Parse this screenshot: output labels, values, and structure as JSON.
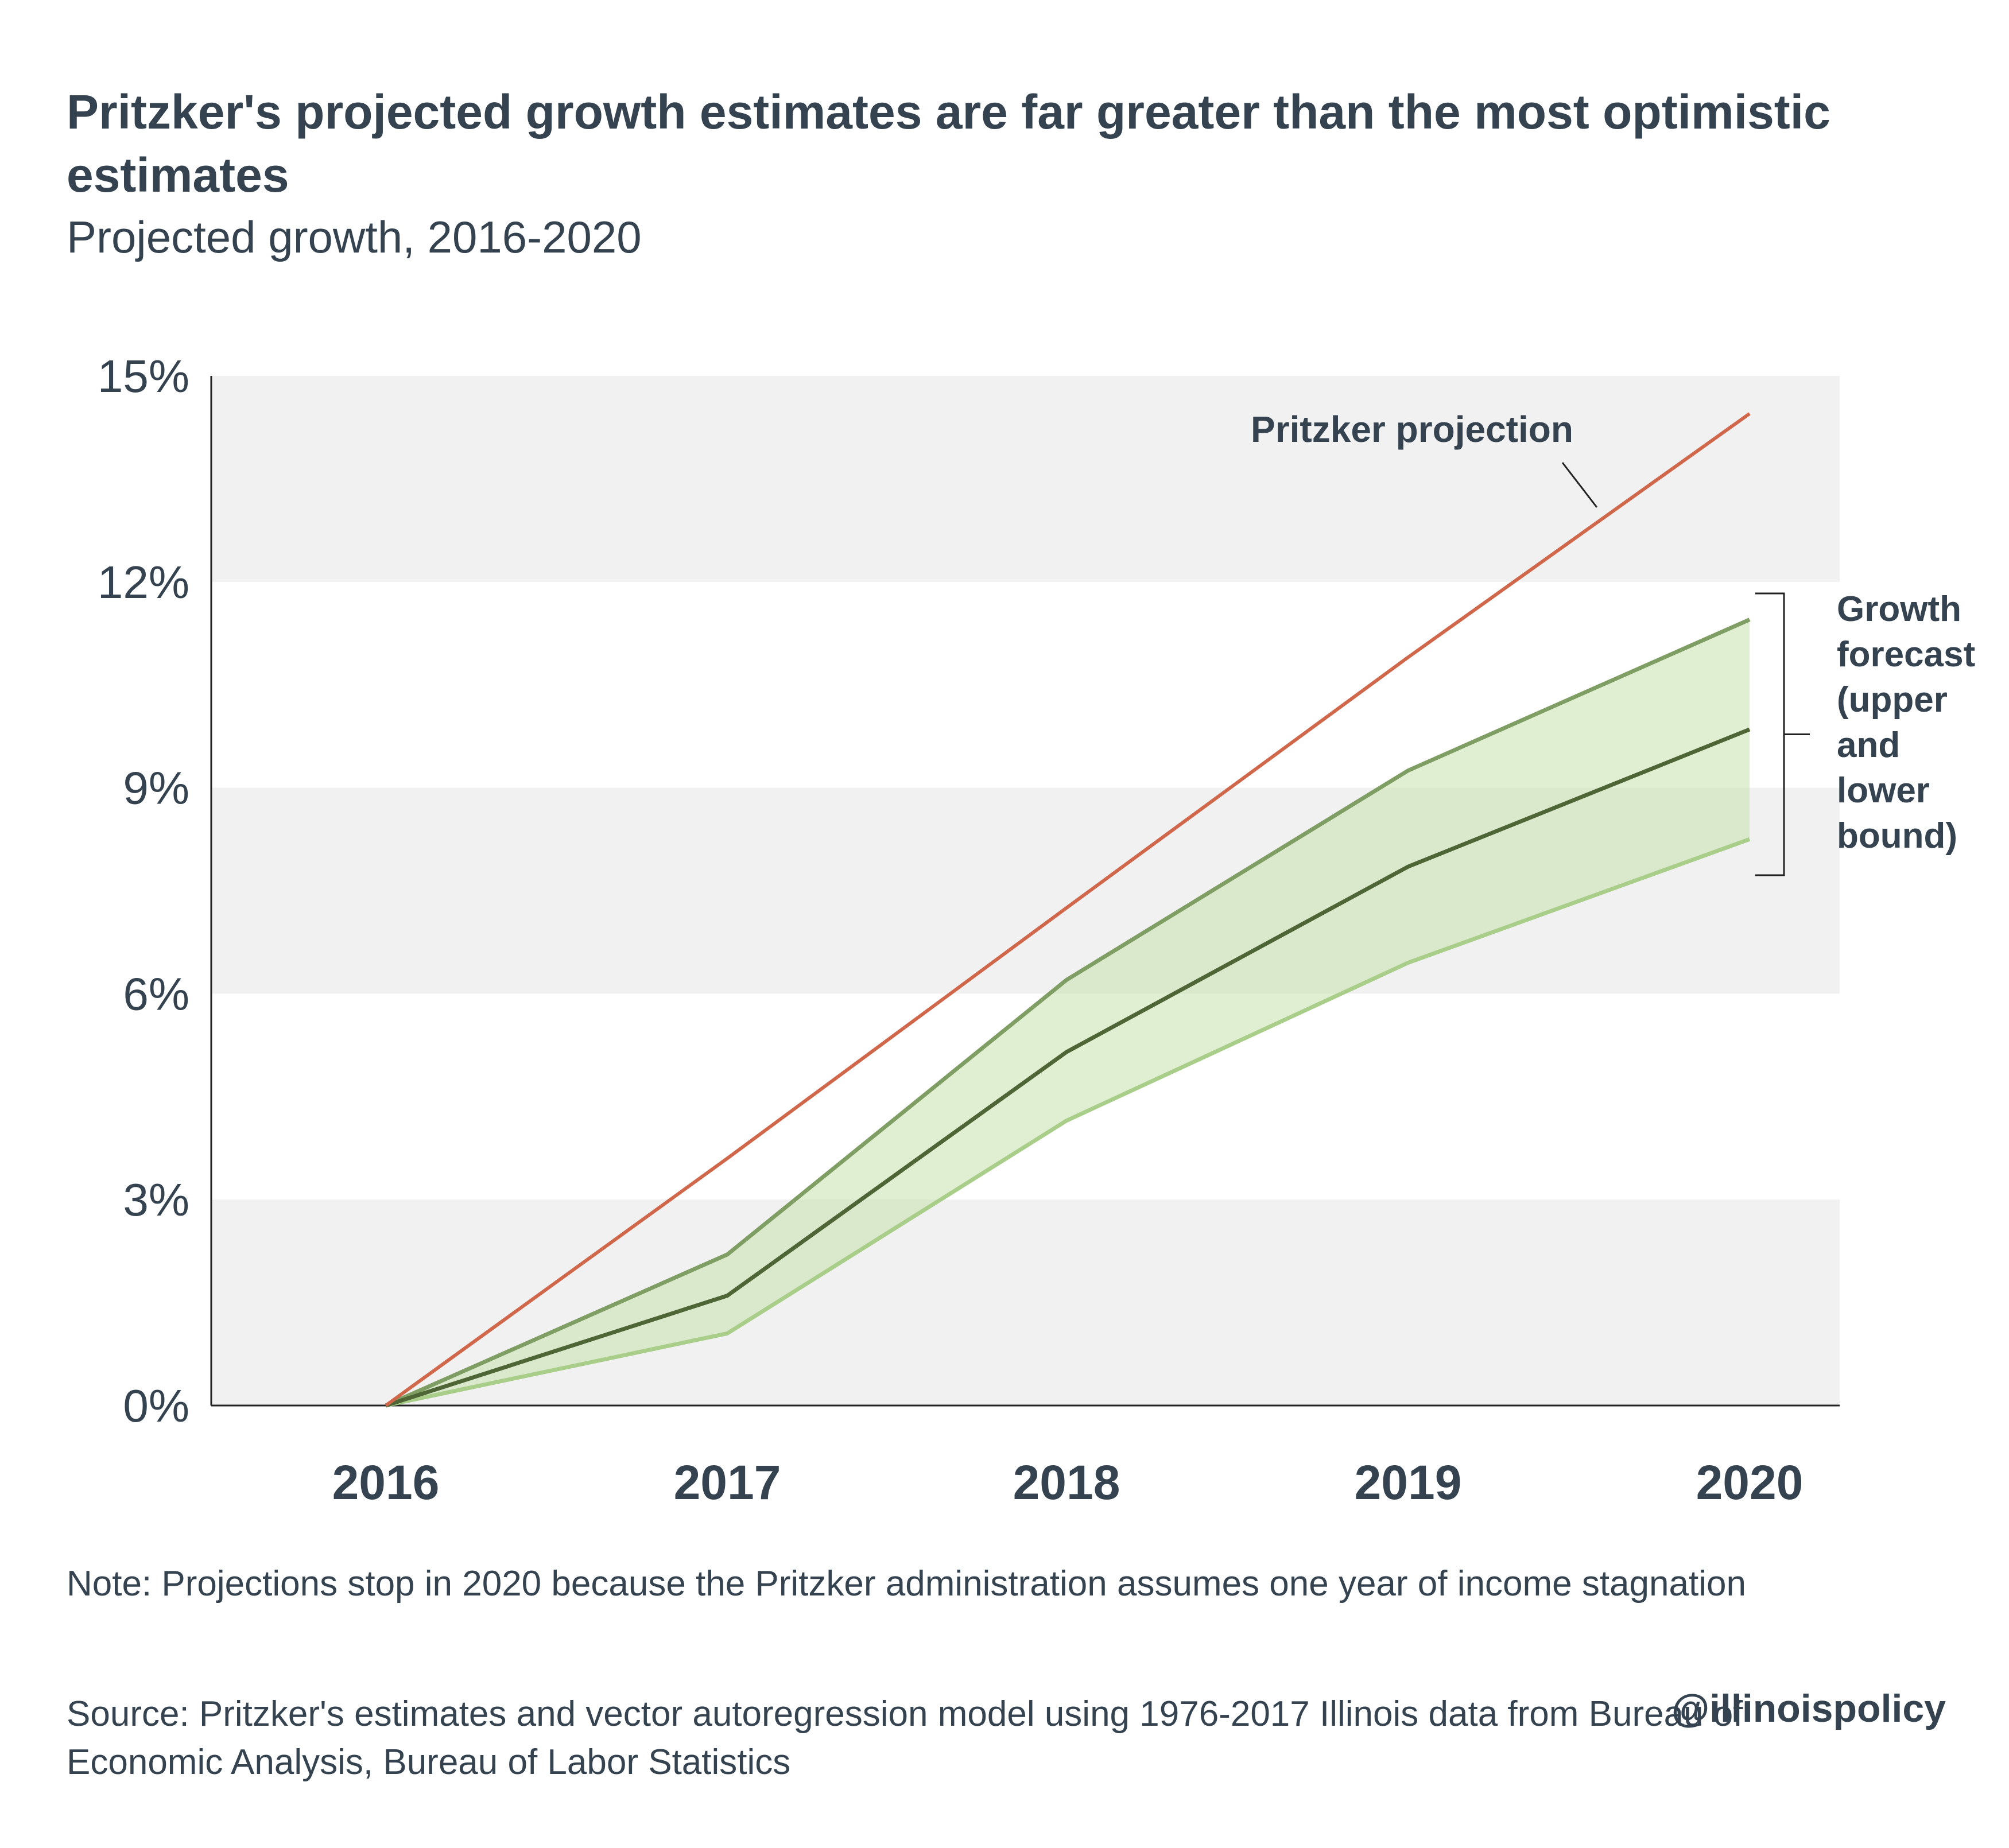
{
  "title": "Pritzker's projected growth estimates are far greater than the most optimistic estimates",
  "subtitle": "Projected growth, 2016-2020",
  "note": "Note: Projections stop in 2020 because the Pritzker administration assumes one year of income stagnation",
  "source": "Source:  Pritzker's estimates and vector autoregression model using 1976-2017 Illinois data from Bureau of Economic Analysis, Bureau of Labor Statistics",
  "handle": "@illinoispolicy",
  "colors": {
    "pritzker": "#d0674a",
    "upper": "#7f9e63",
    "middle": "#4e6535",
    "lower": "#a9ce8a",
    "band": "#c7e0ad",
    "grid_shade": "#f1f1f1",
    "text": "#34434f"
  },
  "chart_data": {
    "type": "line",
    "x": [
      "2016",
      "2017",
      "2018",
      "2019",
      "2020"
    ],
    "ylim": [
      0,
      15
    ],
    "yticks": [
      0,
      3,
      6,
      9,
      12,
      15
    ],
    "ytick_labels": [
      "0%",
      "3%",
      "6%",
      "9%",
      "12%",
      "15%"
    ],
    "series": [
      {
        "key": "pritzker",
        "values": [
          0,
          3.6,
          7.25,
          10.9,
          14.45
        ]
      },
      {
        "key": "upper",
        "values": [
          0,
          2.2,
          6.2,
          9.25,
          11.45
        ]
      },
      {
        "key": "middle",
        "values": [
          0,
          1.6,
          5.15,
          7.85,
          9.85
        ]
      },
      {
        "key": "lower",
        "values": [
          0,
          1.05,
          4.15,
          6.45,
          8.25
        ]
      }
    ],
    "annotations": {
      "pritzker_label": "Pritzker projection",
      "forecast_label": [
        "Growth",
        "forecast",
        "(upper",
        "and",
        "lower",
        "bound)"
      ]
    }
  }
}
